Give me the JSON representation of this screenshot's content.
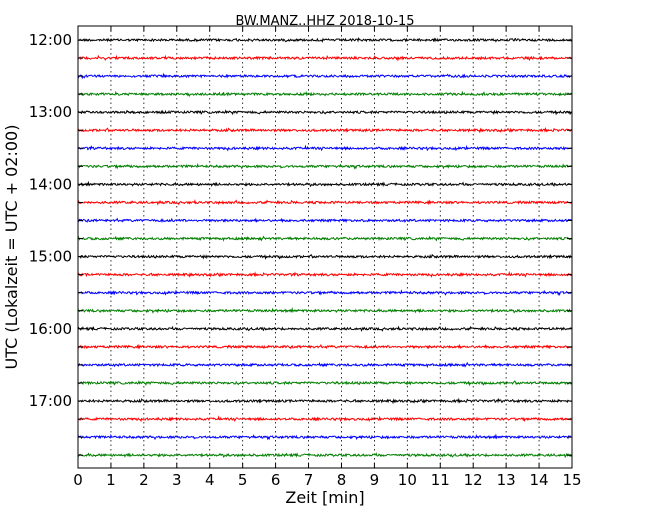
{
  "chart_data": {
    "type": "line",
    "title": "BW.MANZ..HHZ 2018-10-15",
    "xlabel": "Zeit  [min]",
    "ylabel": "UTC (Lokalzeit = UTC + 02:00)",
    "xlim": [
      0,
      15
    ],
    "x_ticks": [
      "0",
      "1",
      "2",
      "3",
      "4",
      "5",
      "6",
      "7",
      "8",
      "9",
      "10",
      "11",
      "12",
      "13",
      "14",
      "15"
    ],
    "y_tick_labels": [
      "12:00",
      "13:00",
      "14:00",
      "15:00",
      "16:00",
      "17:00"
    ],
    "trace_start_times": [
      "12:00",
      "12:15",
      "12:30",
      "12:45",
      "13:00",
      "13:15",
      "13:30",
      "13:45",
      "14:00",
      "14:15",
      "14:30",
      "14:45",
      "15:00",
      "15:15",
      "15:30",
      "15:45",
      "16:00",
      "16:15",
      "16:30",
      "16:45",
      "17:00",
      "17:15",
      "17:30",
      "17:45"
    ],
    "trace_colors": [
      "#000000",
      "#ff0000",
      "#0000ff",
      "#008000"
    ],
    "grid": "vertical dotted"
  }
}
